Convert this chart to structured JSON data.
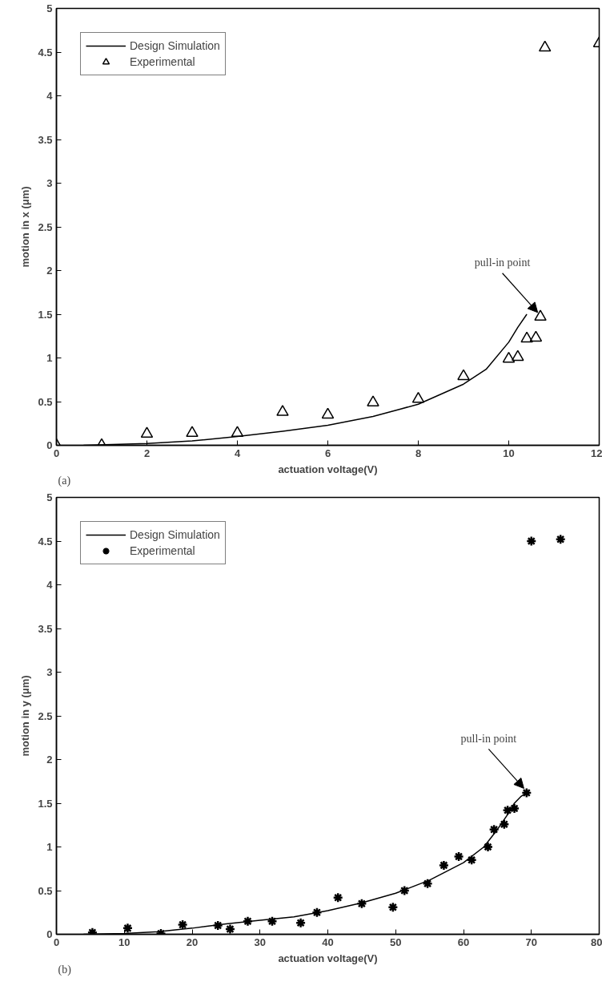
{
  "chart_data": [
    {
      "type": "line",
      "xlabel": "actuation voltage(V)",
      "ylabel": "motion in x (μm)",
      "xlim": [
        0,
        12
      ],
      "ylim": [
        0,
        5
      ],
      "xticks": [
        0,
        2,
        4,
        6,
        8,
        10,
        12
      ],
      "yticks": [
        0,
        0.5,
        1,
        1.5,
        2,
        2.5,
        3,
        3.5,
        4,
        4.5,
        5
      ],
      "grid": false,
      "legend": "top left",
      "annotations": [
        {
          "text": "pull-in point",
          "x": 10.7,
          "y": 1.47
        },
        "(a)"
      ],
      "series": [
        {
          "name": "Design Simulation",
          "marker": "none",
          "color": "#000000",
          "x": [
            0.6,
            2,
            3,
            4,
            5,
            6,
            7,
            8,
            9,
            9.5,
            10,
            10.2,
            10.4
          ],
          "values": [
            0,
            0.02,
            0.05,
            0.1,
            0.16,
            0.23,
            0.33,
            0.47,
            0.7,
            0.87,
            1.18,
            1.35,
            1.5
          ]
        },
        {
          "name": "Experimental",
          "type": "scatter",
          "marker": "triangle",
          "color": "#000000",
          "x": [
            0,
            1,
            2,
            3,
            4,
            5,
            6,
            7,
            8,
            9,
            10,
            10.2,
            10.4,
            10.6,
            10.7,
            10.8,
            12
          ],
          "values": [
            0,
            0,
            0.13,
            0.14,
            0.14,
            0.38,
            0.35,
            0.49,
            0.53,
            0.79,
            0.99,
            1.01,
            1.22,
            1.23,
            1.47,
            4.55,
            4.6
          ]
        }
      ]
    },
    {
      "type": "line",
      "xlabel": "actuation voltage(V)",
      "ylabel": "motion in y (μm)",
      "xlim": [
        0,
        80
      ],
      "ylim": [
        0,
        5
      ],
      "xticks": [
        0,
        10,
        20,
        30,
        40,
        50,
        60,
        70,
        80
      ],
      "yticks": [
        0,
        0.5,
        1,
        1.5,
        2,
        2.5,
        3,
        3.5,
        4,
        4.5,
        5
      ],
      "grid": false,
      "legend": "top left",
      "annotations": [
        {
          "text": "pull-in point",
          "x": 69.3,
          "y": 1.62
        },
        "(b)"
      ],
      "series": [
        {
          "name": "Design Simulation",
          "marker": "none",
          "color": "#000000",
          "x": [
            4,
            10,
            15,
            20,
            25,
            30,
            35,
            40,
            45,
            50,
            55,
            60,
            63,
            65,
            66.5,
            67.5,
            68.5,
            69.3
          ],
          "values": [
            0,
            0.01,
            0.03,
            0.07,
            0.12,
            0.16,
            0.2,
            0.27,
            0.36,
            0.47,
            0.62,
            0.82,
            1.0,
            1.2,
            1.37,
            1.5,
            1.58,
            1.62
          ]
        },
        {
          "name": "Experimental",
          "type": "scatter",
          "marker": "cross",
          "color": "#000000",
          "x": [
            5.3,
            10.5,
            15.4,
            18.6,
            23.8,
            25.6,
            28.2,
            31.8,
            36,
            38.4,
            41.5,
            45,
            49.6,
            51.3,
            54.7,
            57.1,
            59.3,
            61.2,
            63.6,
            64.5,
            66,
            66.5,
            67.5,
            69.3,
            70,
            74.3
          ],
          "values": [
            0.02,
            0.07,
            0.01,
            0.11,
            0.1,
            0.06,
            0.15,
            0.15,
            0.13,
            0.25,
            0.42,
            0.35,
            0.31,
            0.5,
            0.58,
            0.79,
            0.89,
            0.85,
            1.0,
            1.2,
            1.26,
            1.42,
            1.44,
            1.62,
            4.5,
            4.52
          ]
        }
      ]
    }
  ]
}
